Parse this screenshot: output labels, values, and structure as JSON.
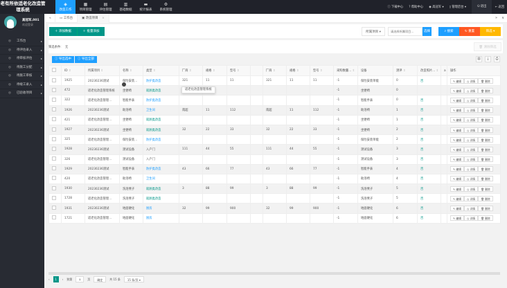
{
  "app": {
    "title": "老有所依适老化改造管理系统"
  },
  "topnav": [
    {
      "label": "改造工作",
      "icon": "layers-icon",
      "active": true
    },
    {
      "label": "项目管理",
      "icon": "calendar-icon"
    },
    {
      "label": "评估管理",
      "icon": "panel-icon"
    },
    {
      "label": "基础数据",
      "icon": "database-icon"
    },
    {
      "label": "统计报表",
      "icon": "chat-icon"
    },
    {
      "label": "系统管理",
      "icon": "gear-icon"
    }
  ],
  "topright": {
    "download": "下载中心",
    "help": "帮助中心",
    "user": "高冠军",
    "admin": "管理后台",
    "logout": "退出",
    "back": "返回"
  },
  "user": {
    "name": "高冠军,001",
    "status": "欢迎登录"
  },
  "sidebar": [
    {
      "label": "工作台"
    },
    {
      "label": "待评估录入"
    },
    {
      "label": "待审核评估"
    },
    {
      "label": "待施工分配"
    },
    {
      "label": "待施工审核"
    },
    {
      "label": "待竣工录入"
    },
    {
      "label": "已验收项目"
    }
  ],
  "tabs": [
    {
      "label": "工作台"
    },
    {
      "label": "改造项目"
    }
  ],
  "toolbar": {
    "add": "添加数据",
    "batch_add": "批量添加",
    "project_select": "所属项目",
    "search_placeholder": "请选择所属项目...",
    "choose": "选择",
    "search": "搜索",
    "reset": "重置",
    "filter": "筛选",
    "clear_filter": "清除筛选",
    "filter_label": "筛选条件:",
    "filter_value": "无",
    "export_selected": "导出选中",
    "export_all": "导出全部"
  },
  "table": {
    "headers": [
      "ID",
      "所属项目",
      "名称",
      "类型",
      "厂商",
      "规格",
      "型号",
      "",
      "厂商",
      "规格",
      "型号",
      "采购数量...",
      "设备",
      "测评",
      "改造照片...",
      "a",
      "操作"
    ],
    "rows": [
      [
        "1925",
        "20230236测试",
        "保险安装...",
        "防护类改造",
        "321",
        "11",
        "11",
        "",
        "321",
        "11",
        "11",
        "-1",
        "保险安装单能",
        "0",
        "否"
      ],
      [
        "472",
        "适老化改造管理系统",
        "坐便椅",
        "就厕类改造",
        "",
        "",
        "",
        "",
        "",
        "",
        "",
        "-1",
        "坐便椅",
        "0",
        ""
      ],
      [
        "322",
        "适老化改造管理...",
        "智能手表",
        "防护类改造",
        "",
        "",
        "",
        "",
        "",
        "",
        "",
        "-1",
        "智能手表",
        "0",
        "否"
      ],
      [
        "1926",
        "20230236测试",
        "助浴椅",
        "卫生间",
        "南超",
        "11",
        "112",
        "",
        "南超",
        "11",
        "112",
        "-1",
        "助浴椅",
        "1",
        "否"
      ],
      [
        "421",
        "适老化改造管理...",
        "坐便椅",
        "就厕类改造",
        "",
        "",
        "",
        "",
        "",
        "",
        "",
        "-1",
        "坐便椅",
        "1",
        "否"
      ],
      [
        "1927",
        "20230236测试",
        "坐便椅",
        "就厕类改造",
        "32",
        "22",
        "33",
        "",
        "32",
        "22",
        "33",
        "-1",
        "坐便椅",
        "2",
        "否"
      ],
      [
        "325",
        "适老化改造管理...",
        "保险安装...",
        "防护类改造",
        "",
        "",
        "",
        "",
        "",
        "",
        "",
        "-1",
        "保险安装单能",
        "2",
        "否"
      ],
      [
        "1928",
        "20230236测试",
        "测试设备",
        "入户门",
        "111",
        "44",
        "55",
        "",
        "111",
        "44",
        "55",
        "-1",
        "测试设备",
        "3",
        "否"
      ],
      [
        "326",
        "适老化改造管理...",
        "测试设备",
        "入户门",
        "",
        "",
        "",
        "",
        "",
        "",
        "",
        "-1",
        "测试设备",
        "3",
        "否"
      ],
      [
        "1929",
        "20230236测试",
        "智能手表",
        "防护类改造",
        "43",
        "66",
        "77",
        "",
        "43",
        "66",
        "77",
        "-1",
        "智能手表",
        "4",
        "否"
      ],
      [
        "420",
        "适老化改造管理...",
        "助浴椅",
        "卫生间",
        "",
        "",
        "",
        "",
        "",
        "",
        "",
        "-1",
        "助浴椅",
        "4",
        "否"
      ],
      [
        "1930",
        "20230236测试",
        "洗浴凳子",
        "就厕类改造",
        "3",
        "88",
        "99",
        "",
        "3",
        "88",
        "99",
        "-1",
        "洗浴凳子",
        "5",
        "否"
      ],
      [
        "1728",
        "适老化改造管理...",
        "洗浴凳子",
        "就厕类改造",
        "",
        "",
        "",
        "",
        "",
        "",
        "",
        "-1",
        "洗浴凳子",
        "5",
        "否"
      ],
      [
        "1931",
        "20230236测试",
        "地面硬化",
        "厨房",
        "32",
        "99",
        "900",
        "",
        "32",
        "99",
        "900",
        "-1",
        "地面硬化",
        "6",
        "否"
      ],
      [
        "1721",
        "适老化改造管理...",
        "地面硬化",
        "厨房",
        "",
        "",
        "",
        "",
        "",
        "",
        "",
        "-1",
        "地面硬化",
        "6",
        "否"
      ]
    ],
    "type_colors": {
      "防护类改造": "#1e9fff",
      "卫生间": "#1e9fff",
      "厨房": "#1e9fff",
      "就厕类改造": "#009688",
      "入户门": "#555555"
    },
    "ops": [
      "编辑",
      "详情",
      "删除"
    ],
    "tooltip": "适老化改造管理系统"
  },
  "pager": {
    "current": "1",
    "goto_label": "到第",
    "goto_value": "1",
    "page_unit": "页",
    "confirm": "确定",
    "total": "共 15 条",
    "per_page": "15 条/页"
  },
  "colors": {
    "accent": "#009688",
    "topnav_active": "#1e9fff",
    "reset": "#ff5722",
    "filter": "#ffb800"
  }
}
